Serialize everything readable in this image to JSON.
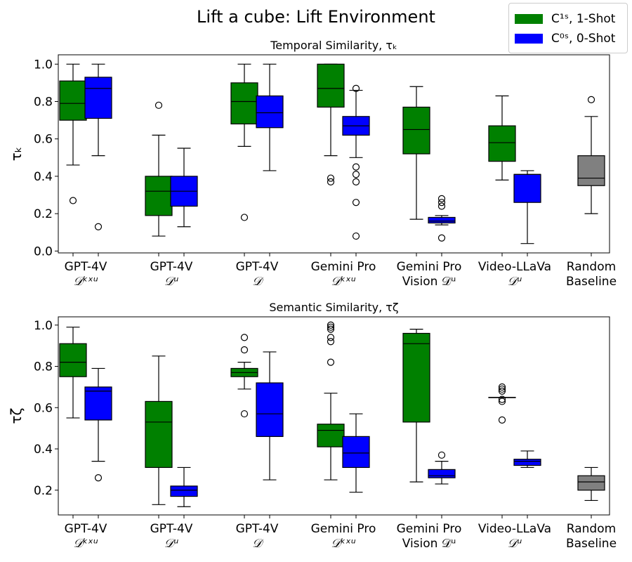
{
  "figure": {
    "title": "Lift a cube: Lift Environment"
  },
  "legend": [
    {
      "label": "C¹ˢ, 1-Shot",
      "color": "#008000"
    },
    {
      "label": "C⁰ˢ, 0-Shot",
      "color": "#0000ff"
    }
  ],
  "colors": {
    "one_shot": "#008000",
    "zero_shot": "#0000ff",
    "baseline": "#808080"
  },
  "chart_data": [
    {
      "type": "box",
      "title": "Temporal Similarity, τₖ",
      "ylabel": "τₖ",
      "ylim": [
        -0.01,
        1.05
      ],
      "yticks": [
        "0.0",
        "0.2",
        "0.4",
        "0.6",
        "0.8",
        "1.0"
      ],
      "categories": [
        {
          "line1": "GPT-4V",
          "line2": "𝒟ᵏˣᵘ"
        },
        {
          "line1": "GPT-4V",
          "line2": "𝒟ᵘ"
        },
        {
          "line1": "GPT-4V",
          "line2": "𝒟"
        },
        {
          "line1": "Gemini Pro",
          "line2": "𝒟ᵏˣᵘ"
        },
        {
          "line1": "Gemini Pro",
          "line2": "Vision 𝒟ᵘ"
        },
        {
          "line1": "Video-LLaVa",
          "line2": "𝒟ᵘ"
        },
        {
          "line1": "Random",
          "line2": "Baseline"
        }
      ],
      "boxes": [
        {
          "cat": 0,
          "series": "one_shot",
          "whislo": 0.46,
          "q1": 0.7,
          "med": 0.79,
          "q3": 0.91,
          "whishi": 1.0,
          "fliers": [
            0.27
          ]
        },
        {
          "cat": 0,
          "series": "zero_shot",
          "whislo": 0.51,
          "q1": 0.71,
          "med": 0.87,
          "q3": 0.93,
          "whishi": 1.0,
          "fliers": [
            0.13
          ]
        },
        {
          "cat": 1,
          "series": "one_shot",
          "whislo": 0.08,
          "q1": 0.19,
          "med": 0.32,
          "q3": 0.4,
          "whishi": 0.62,
          "fliers": [
            0.78
          ]
        },
        {
          "cat": 1,
          "series": "zero_shot",
          "whislo": 0.13,
          "q1": 0.24,
          "med": 0.32,
          "q3": 0.4,
          "whishi": 0.55,
          "fliers": []
        },
        {
          "cat": 2,
          "series": "one_shot",
          "whislo": 0.56,
          "q1": 0.68,
          "med": 0.8,
          "q3": 0.9,
          "whishi": 1.0,
          "fliers": [
            0.18
          ]
        },
        {
          "cat": 2,
          "series": "zero_shot",
          "whislo": 0.43,
          "q1": 0.66,
          "med": 0.74,
          "q3": 0.83,
          "whishi": 1.0,
          "fliers": []
        },
        {
          "cat": 3,
          "series": "one_shot",
          "whislo": 0.51,
          "q1": 0.77,
          "med": 0.87,
          "q3": 1.0,
          "whishi": 1.0,
          "fliers": [
            0.39,
            0.37
          ]
        },
        {
          "cat": 3,
          "series": "zero_shot",
          "whislo": 0.5,
          "q1": 0.62,
          "med": 0.67,
          "q3": 0.72,
          "whishi": 0.86,
          "fliers": [
            0.87,
            0.45,
            0.41,
            0.37,
            0.26,
            0.08
          ]
        },
        {
          "cat": 4,
          "series": "one_shot",
          "whislo": 0.17,
          "q1": 0.52,
          "med": 0.65,
          "q3": 0.77,
          "whishi": 0.88,
          "fliers": []
        },
        {
          "cat": 4,
          "series": "zero_shot",
          "whislo": 0.14,
          "q1": 0.15,
          "med": 0.16,
          "q3": 0.18,
          "whishi": 0.19,
          "fliers": [
            0.28,
            0.26,
            0.24,
            0.07
          ]
        },
        {
          "cat": 5,
          "series": "one_shot",
          "whislo": 0.38,
          "q1": 0.48,
          "med": 0.58,
          "q3": 0.67,
          "whishi": 0.83,
          "fliers": []
        },
        {
          "cat": 5,
          "series": "zero_shot",
          "whislo": 0.04,
          "q1": 0.26,
          "med": 0.41,
          "q3": 0.41,
          "whishi": 0.43,
          "fliers": []
        },
        {
          "cat": 6,
          "series": "baseline",
          "whislo": 0.2,
          "q1": 0.35,
          "med": 0.39,
          "q3": 0.51,
          "whishi": 0.72,
          "fliers": [
            0.81
          ]
        }
      ]
    },
    {
      "type": "box",
      "title": "Semantic Similarity, τζ",
      "ylabel": "τζ",
      "ylim": [
        0.08,
        1.04
      ],
      "yticks": [
        "0.2",
        "0.4",
        "0.6",
        "0.8",
        "1.0"
      ],
      "categories": [
        {
          "line1": "GPT-4V",
          "line2": "𝒟ᵏˣᵘ"
        },
        {
          "line1": "GPT-4V",
          "line2": "𝒟ᵘ"
        },
        {
          "line1": "GPT-4V",
          "line2": "𝒟"
        },
        {
          "line1": "Gemini Pro",
          "line2": "𝒟ᵏˣᵘ"
        },
        {
          "line1": "Gemini Pro",
          "line2": "Vision 𝒟ᵘ"
        },
        {
          "line1": "Video-LLaVa",
          "line2": "𝒟ᵘ"
        },
        {
          "line1": "Random",
          "line2": "Baseline"
        }
      ],
      "boxes": [
        {
          "cat": 0,
          "series": "one_shot",
          "whislo": 0.55,
          "q1": 0.75,
          "med": 0.82,
          "q3": 0.91,
          "whishi": 0.99,
          "fliers": []
        },
        {
          "cat": 0,
          "series": "zero_shot",
          "whislo": 0.34,
          "q1": 0.54,
          "med": 0.68,
          "q3": 0.7,
          "whishi": 0.79,
          "fliers": [
            0.26
          ]
        },
        {
          "cat": 1,
          "series": "one_shot",
          "whislo": 0.13,
          "q1": 0.31,
          "med": 0.53,
          "q3": 0.63,
          "whishi": 0.85,
          "fliers": []
        },
        {
          "cat": 1,
          "series": "zero_shot",
          "whislo": 0.12,
          "q1": 0.17,
          "med": 0.2,
          "q3": 0.22,
          "whishi": 0.31,
          "fliers": []
        },
        {
          "cat": 2,
          "series": "one_shot",
          "whislo": 0.69,
          "q1": 0.75,
          "med": 0.77,
          "q3": 0.79,
          "whishi": 0.82,
          "fliers": [
            0.94,
            0.88,
            0.57
          ]
        },
        {
          "cat": 2,
          "series": "zero_shot",
          "whislo": 0.25,
          "q1": 0.46,
          "med": 0.57,
          "q3": 0.72,
          "whishi": 0.87,
          "fliers": []
        },
        {
          "cat": 3,
          "series": "one_shot",
          "whislo": 0.25,
          "q1": 0.41,
          "med": 0.49,
          "q3": 0.52,
          "whishi": 0.67,
          "fliers": [
            1.0,
            0.99,
            0.98,
            0.94,
            0.92,
            0.82
          ]
        },
        {
          "cat": 3,
          "series": "zero_shot",
          "whislo": 0.19,
          "q1": 0.31,
          "med": 0.38,
          "q3": 0.46,
          "whishi": 0.57,
          "fliers": []
        },
        {
          "cat": 4,
          "series": "one_shot",
          "whislo": 0.24,
          "q1": 0.53,
          "med": 0.91,
          "q3": 0.96,
          "whishi": 0.98,
          "fliers": []
        },
        {
          "cat": 4,
          "series": "zero_shot",
          "whislo": 0.23,
          "q1": 0.26,
          "med": 0.27,
          "q3": 0.3,
          "whishi": 0.34,
          "fliers": [
            0.37
          ]
        },
        {
          "cat": 5,
          "series": "one_shot",
          "whislo": 0.65,
          "q1": 0.65,
          "med": 0.65,
          "q3": 0.65,
          "whishi": 0.65,
          "fliers": [
            0.7,
            0.69,
            0.68,
            0.64,
            0.63,
            0.54
          ]
        },
        {
          "cat": 5,
          "series": "zero_shot",
          "whislo": 0.31,
          "q1": 0.32,
          "med": 0.34,
          "q3": 0.35,
          "whishi": 0.39,
          "fliers": []
        },
        {
          "cat": 6,
          "series": "baseline",
          "whislo": 0.15,
          "q1": 0.2,
          "med": 0.24,
          "q3": 0.27,
          "whishi": 0.31,
          "fliers": []
        }
      ]
    }
  ]
}
